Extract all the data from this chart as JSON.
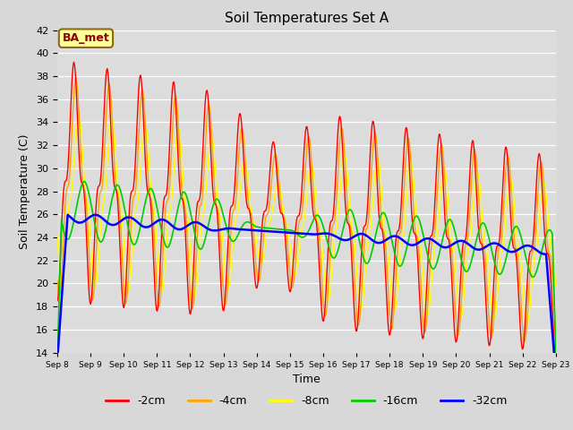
{
  "title": "Soil Temperatures Set A",
  "xlabel": "Time",
  "ylabel": "Soil Temperature (C)",
  "ylim": [
    14,
    42
  ],
  "yticks": [
    14,
    16,
    18,
    20,
    22,
    24,
    26,
    28,
    30,
    32,
    34,
    36,
    38,
    40,
    42
  ],
  "xtick_labels": [
    "Sep 8",
    "Sep 9",
    "Sep 10",
    "Sep 11",
    "Sep 12",
    "Sep 13",
    "Sep 14",
    "Sep 15",
    "Sep 16",
    "Sep 17",
    "Sep 18",
    "Sep 19",
    "Sep 20",
    "Sep 21",
    "Sep 22",
    "Sep 23"
  ],
  "annotation": "BA_met",
  "colors": {
    "-2cm": "#FF0000",
    "-4cm": "#FFA500",
    "-8cm": "#FFFF00",
    "-16cm": "#00CC00",
    "-32cm": "#0000FF"
  },
  "legend_labels": [
    "-2cm",
    "-4cm",
    "-8cm",
    "-16cm",
    "-32cm"
  ],
  "bg_color": "#D8D8D8",
  "plot_bg_color": "#DCDCDC",
  "n_days": 15,
  "start_day": 8
}
